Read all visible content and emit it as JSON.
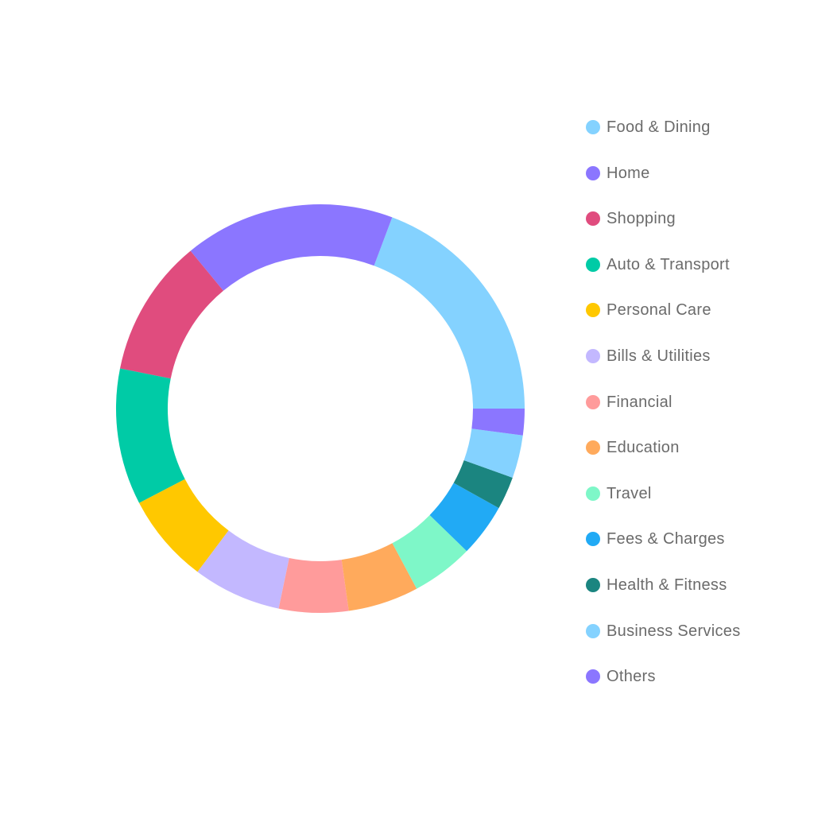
{
  "chart_data": {
    "type": "pie",
    "variant": "donut",
    "title": "",
    "legend_position": "right",
    "unit": "percent (estimated)",
    "slices": [
      {
        "label": "Food & Dining",
        "value": 19.3,
        "color": "#84d2ff"
      },
      {
        "label": "Home",
        "value": 16.7,
        "color": "#8b76ff"
      },
      {
        "label": "Shopping",
        "value": 10.9,
        "color": "#e04c7e"
      },
      {
        "label": "Auto & Transport",
        "value": 10.8,
        "color": "#00cba6"
      },
      {
        "label": "Personal Care",
        "value": 7.1,
        "color": "#ffc800"
      },
      {
        "label": "Bills & Utilities",
        "value": 7.0,
        "color": "#c3b8ff"
      },
      {
        "label": "Financial",
        "value": 5.5,
        "color": "#ff9b9b"
      },
      {
        "label": "Education",
        "value": 5.6,
        "color": "#ffaa5c"
      },
      {
        "label": "Travel",
        "value": 4.9,
        "color": "#7ef7c8"
      },
      {
        "label": "Fees & Charges",
        "value": 4.2,
        "color": "#21aaf5"
      },
      {
        "label": "Health & Fitness",
        "value": 2.6,
        "color": "#1b8580"
      },
      {
        "label": "Business Services",
        "value": 3.4,
        "color": "#84d2ff"
      },
      {
        "label": "Others",
        "value": 2.1,
        "color": "#8b76ff"
      }
    ]
  }
}
